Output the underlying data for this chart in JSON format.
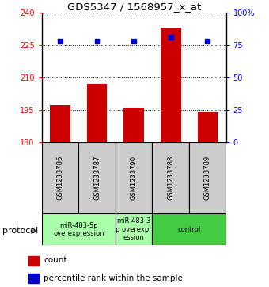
{
  "title": "GDS5347 / 1568957_x_at",
  "samples": [
    "GSM1233786",
    "GSM1233787",
    "GSM1233790",
    "GSM1233788",
    "GSM1233789"
  ],
  "bar_values": [
    197,
    207,
    196,
    233,
    194
  ],
  "percentile_values": [
    78,
    78,
    78,
    81,
    78
  ],
  "ylim_left": [
    180,
    240
  ],
  "ylim_right": [
    0,
    100
  ],
  "yticks_left": [
    180,
    195,
    210,
    225,
    240
  ],
  "yticks_right": [
    0,
    25,
    50,
    75,
    100
  ],
  "bar_color": "#cc0000",
  "dot_color": "#0000cc",
  "bar_bottom": 180,
  "group_spans": [
    [
      0,
      2,
      "miR-483-5p\noverexpression",
      "#aaffaa"
    ],
    [
      2,
      3,
      "miR-483-3\np overexpr\nession",
      "#aaffaa"
    ],
    [
      3,
      5,
      "control",
      "#44cc44"
    ]
  ],
  "protocol_label": "protocol",
  "legend_count_label": "count",
  "legend_percentile_label": "percentile rank within the sample",
  "sample_box_color": "#cccccc",
  "fig_width": 3.4,
  "fig_height": 3.63,
  "fig_dpi": 100
}
